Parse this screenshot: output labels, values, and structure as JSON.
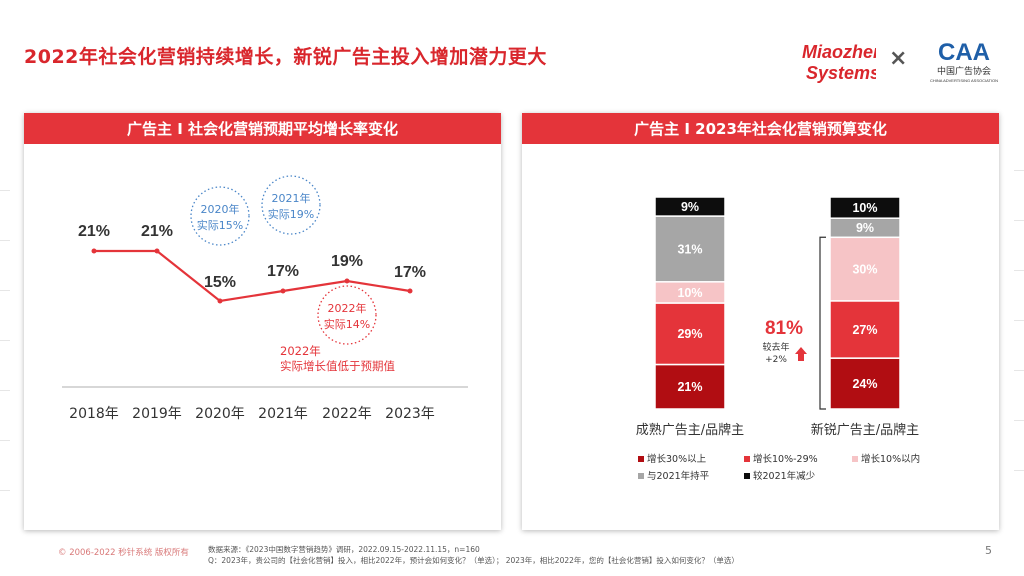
{
  "title": "2022年社会化营销持续增长，新锐广告主投入增加潜力更大",
  "logos": {
    "miaozhen_line1": "Miaozhen",
    "miaozhen_line2": "Systems",
    "times": "×",
    "caa_mark": "CAA",
    "caa_cn": "中国广告协会",
    "caa_en": "CHINA ADVERTISING ASSOCIATION"
  },
  "left_panel": {
    "header": "广告主 I 社会化营销预期平均增长率变化"
  },
  "right_panel": {
    "header": "广告主 I 2023年社会化营销预算变化"
  },
  "chart_data": [
    {
      "type": "line",
      "x": [
        "2018年",
        "2019年",
        "2020年",
        "2021年",
        "2022年",
        "2023年"
      ],
      "values": [
        21,
        21,
        15,
        17,
        19,
        17
      ],
      "value_labels": [
        "21%",
        "21%",
        "15%",
        "17%",
        "19%",
        "17%"
      ],
      "color": "#e4343a",
      "annotations": [
        {
          "lines": [
            "2020年",
            "实际15%"
          ],
          "style": "blue-dotted-circle",
          "color": "#4a86c8"
        },
        {
          "lines": [
            "2021年",
            "实际19%"
          ],
          "style": "blue-dotted-circle",
          "color": "#4a86c8"
        },
        {
          "lines": [
            "2022年",
            "实际14%"
          ],
          "style": "red-dotted-circle",
          "color": "#e4343a"
        },
        {
          "lines": [
            "2022年",
            "实际增长值低于预期值"
          ],
          "style": "text",
          "color": "#e4343a"
        }
      ]
    },
    {
      "type": "bar",
      "stacked": true,
      "normalized": true,
      "categories": [
        "成熟广告主/品牌主",
        "新锐广告主/品牌主"
      ],
      "series": [
        {
          "name": "增长30%以上",
          "color": "#b10d12",
          "values": [
            21,
            24
          ]
        },
        {
          "name": "增长10%-29%",
          "color": "#e4343a",
          "values": [
            29,
            27
          ]
        },
        {
          "name": "增长10%以内",
          "color": "#f6c4c6",
          "values": [
            10,
            30
          ]
        },
        {
          "name": "与2021年持平",
          "color": "#a6a6a6",
          "values": [
            31,
            9
          ]
        },
        {
          "name": "较2021年减少",
          "color": "#0d0d0d",
          "values": [
            9,
            10
          ]
        }
      ],
      "bracket_annotation": {
        "value": "81%",
        "note_lines": [
          "较去年",
          "+2%"
        ],
        "color": "#e4343a"
      }
    }
  ],
  "footer": {
    "copyright": "© 2006-2022 秒针系统 版权所有",
    "source_line1": "数据来源：《2023中国数字营销趋势》调研，2022.09.15-2022.11.15，n=160",
    "source_line2": "Q：2023年，贵公司的【社会化营销】投入，相比2022年，预计会如何变化？（单选）； 2023年，相比2022年，您的【社会化营销】投入如何变化？（单选）",
    "page_number": "5"
  }
}
